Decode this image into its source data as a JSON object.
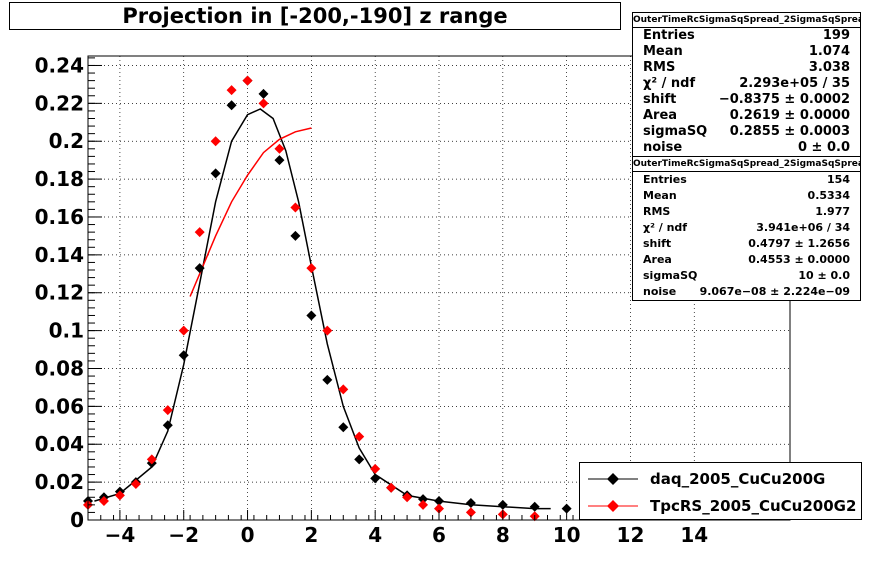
{
  "chart_data": {
    "type": "scatter",
    "title": "Projection in [-200,-190] z range",
    "xlim": [
      -5,
      17
    ],
    "ylim": [
      0,
      0.245
    ],
    "x_ticks": [
      -4,
      -2,
      0,
      2,
      4,
      6,
      8,
      10,
      12,
      14
    ],
    "y_ticks": [
      0,
      0.02,
      0.04,
      0.06,
      0.08,
      0.1,
      0.12,
      0.14,
      0.16,
      0.18,
      0.2,
      0.22,
      0.24
    ],
    "x_tick_labels": [
      "−4",
      "−2",
      "0",
      "2",
      "4",
      "6",
      "8",
      "10",
      "12",
      "14"
    ],
    "y_tick_labels": [
      "0",
      "0.02",
      "0.04",
      "0.06",
      "0.08",
      "0.1",
      "0.12",
      "0.14",
      "0.16",
      "0.18",
      "0.2",
      "0.22",
      "0.24"
    ],
    "grid": true,
    "legend_position": "bottom-right",
    "series": [
      {
        "name": "daq_2005_CuCu200G",
        "color": "#000000",
        "marker": "diamond",
        "x": [
          -5.0,
          -4.5,
          -4.0,
          -3.5,
          -3.0,
          -2.5,
          -2.0,
          -1.5,
          -1.0,
          -0.5,
          0.0,
          0.5,
          1.0,
          1.5,
          2.0,
          2.5,
          3.0,
          3.5,
          4.0,
          4.5,
          5.0,
          5.5,
          6.0,
          7.0,
          8.0,
          9.0,
          10.0
        ],
        "y": [
          0.01,
          0.012,
          0.015,
          0.02,
          0.03,
          0.05,
          0.087,
          0.133,
          0.183,
          0.219,
          0.232,
          0.225,
          0.19,
          0.15,
          0.108,
          0.074,
          0.049,
          0.032,
          0.022,
          0.017,
          0.013,
          0.011,
          0.01,
          0.009,
          0.008,
          0.007,
          0.006
        ]
      },
      {
        "name": "TpcRS_2005_CuCu200G2",
        "color": "#ff0000",
        "marker": "diamond",
        "x": [
          -5.0,
          -4.5,
          -4.0,
          -3.5,
          -3.0,
          -2.5,
          -2.0,
          -1.5,
          -1.0,
          -0.5,
          0.0,
          0.5,
          1.0,
          1.5,
          2.0,
          2.5,
          3.0,
          3.5,
          4.0,
          4.5,
          5.0,
          5.5,
          6.0,
          7.0,
          8.0,
          9.0
        ],
        "y": [
          0.008,
          0.01,
          0.013,
          0.019,
          0.032,
          0.058,
          0.1,
          0.152,
          0.2,
          0.227,
          0.232,
          0.22,
          0.196,
          0.165,
          0.133,
          0.1,
          0.069,
          0.044,
          0.027,
          0.017,
          0.012,
          0.008,
          0.006,
          0.004,
          0.003,
          0.002
        ]
      }
    ],
    "fit_curves": [
      {
        "color": "#000000",
        "x": [
          -4.8,
          -4.0,
          -3.0,
          -2.5,
          -2.0,
          -1.5,
          -1.0,
          -0.5,
          0.0,
          0.4,
          0.8,
          1.2,
          1.6,
          2.0,
          2.5,
          3.0,
          3.5,
          4.0,
          5.0,
          6.0,
          7.0,
          8.0,
          9.0,
          9.5
        ],
        "y": [
          0.01,
          0.014,
          0.028,
          0.047,
          0.082,
          0.125,
          0.168,
          0.2,
          0.214,
          0.217,
          0.212,
          0.195,
          0.168,
          0.134,
          0.093,
          0.06,
          0.038,
          0.024,
          0.013,
          0.01,
          0.008,
          0.007,
          0.006,
          0.006
        ]
      },
      {
        "color": "#ff0000",
        "x": [
          -1.8,
          -1.5,
          -1.0,
          -0.5,
          0.0,
          0.5,
          1.0,
          1.5,
          2.0
        ],
        "y": [
          0.118,
          0.13,
          0.15,
          0.168,
          0.182,
          0.194,
          0.201,
          0.205,
          0.207
        ]
      }
    ]
  },
  "stats_boxes": [
    {
      "header": "OuterTimeRcSigmaSqSpread_2SigmaSqSpread",
      "rows": [
        {
          "label": "Entries",
          "value": "199"
        },
        {
          "label": "Mean",
          "value": "1.074"
        },
        {
          "label": "RMS",
          "value": "3.038"
        },
        {
          "label": "χ² / ndf",
          "value": "2.293e+05 / 35"
        },
        {
          "label": "shift",
          "value": "−0.8375 ± 0.0002"
        },
        {
          "label": "Area",
          "value": "0.2619 ± 0.0000"
        },
        {
          "label": "sigmaSQ",
          "value": "0.2855 ± 0.0003"
        },
        {
          "label": "noise",
          "value": "0 ± 0.0"
        }
      ]
    },
    {
      "header": "OuterTimeRcSigmaSqSpread_2SigmaSqSpread",
      "rows": [
        {
          "label": "Entries",
          "value": "154"
        },
        {
          "label": "Mean",
          "value": "0.5334"
        },
        {
          "label": "RMS",
          "value": "1.977"
        },
        {
          "label": "χ² / ndf",
          "value": "3.941e+06 / 34"
        },
        {
          "label": "shift",
          "value": "0.4797 ± 1.2656"
        },
        {
          "label": "Area",
          "value": "0.4553 ± 0.0000"
        },
        {
          "label": "sigmaSQ",
          "value": "10 ± 0.0"
        },
        {
          "label": "noise",
          "value": "9.067e−08 ± 2.224e−09"
        }
      ]
    }
  ],
  "legend": {
    "entries": [
      {
        "label": "daq_2005_CuCu200G",
        "color": "#000000"
      },
      {
        "label": "TpcRS_2005_CuCu200G2",
        "color": "#ff0000"
      }
    ]
  }
}
